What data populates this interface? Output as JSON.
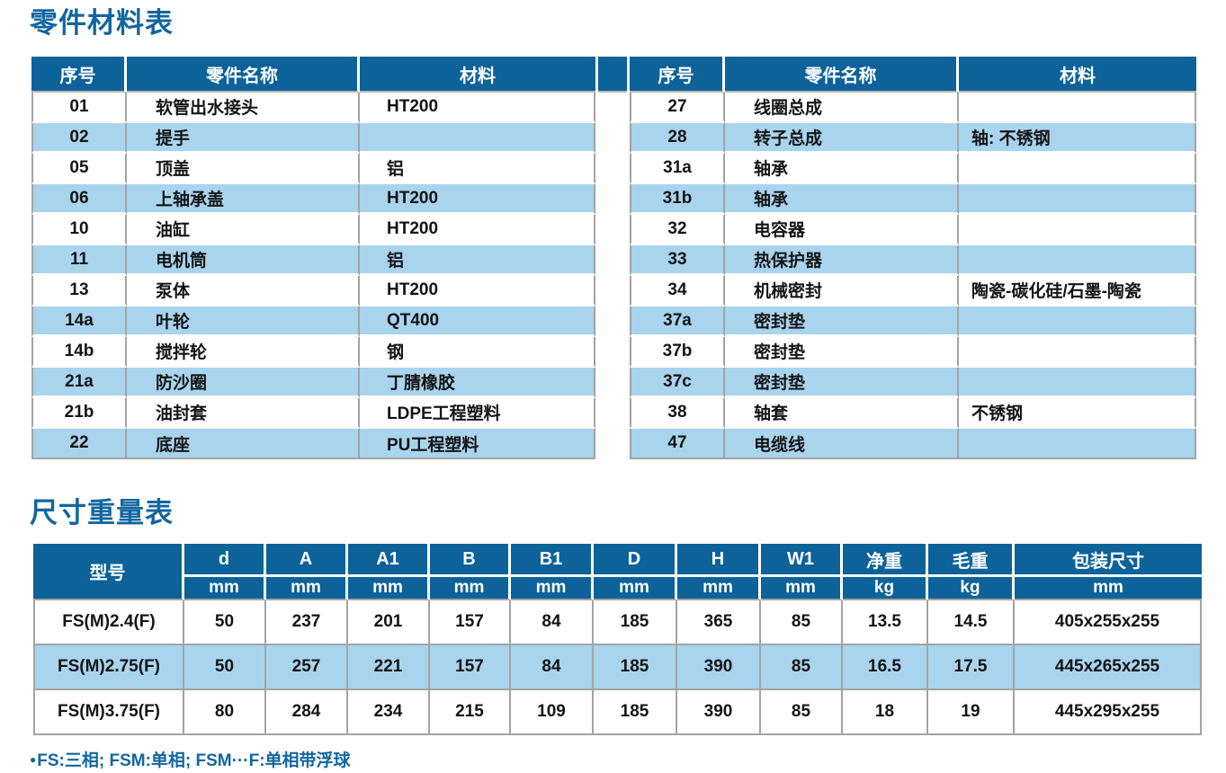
{
  "colors": {
    "header_blue": "#0d629a",
    "light_blue_row": "#a9d4ee",
    "title_blue": "#12669e",
    "border_gray": "#a3a3a3"
  },
  "parts_section": {
    "title": "零件材料表",
    "columns": [
      "序号",
      "零件名称",
      "材料"
    ],
    "left_rows": [
      {
        "no": "01",
        "name": "软管出水接头",
        "material": "HT200"
      },
      {
        "no": "02",
        "name": "提手",
        "material": ""
      },
      {
        "no": "05",
        "name": "顶盖",
        "material": "铝"
      },
      {
        "no": "06",
        "name": "上轴承盖",
        "material": "HT200"
      },
      {
        "no": "10",
        "name": "油缸",
        "material": "HT200"
      },
      {
        "no": "11",
        "name": "电机筒",
        "material": "铝"
      },
      {
        "no": "13",
        "name": "泵体",
        "material": "HT200"
      },
      {
        "no": "14a",
        "name": "叶轮",
        "material": "QT400"
      },
      {
        "no": "14b",
        "name": "搅拌轮",
        "material": "钢"
      },
      {
        "no": "21a",
        "name": "防沙圈",
        "material": "丁腈橡胶"
      },
      {
        "no": "21b",
        "name": "油封套",
        "material": "LDPE工程塑料"
      },
      {
        "no": "22",
        "name": "底座",
        "material": "PU工程塑料"
      }
    ],
    "right_rows": [
      {
        "no": "27",
        "name": "线圈总成",
        "material": ""
      },
      {
        "no": "28",
        "name": "转子总成",
        "material": "轴: 不锈钢"
      },
      {
        "no": "31a",
        "name": "轴承",
        "material": ""
      },
      {
        "no": "31b",
        "name": "轴承",
        "material": ""
      },
      {
        "no": "32",
        "name": "电容器",
        "material": ""
      },
      {
        "no": "33",
        "name": "热保护器",
        "material": ""
      },
      {
        "no": "34",
        "name": "机械密封",
        "material": "陶瓷-碳化硅/石墨-陶瓷"
      },
      {
        "no": "37a",
        "name": "密封垫",
        "material": ""
      },
      {
        "no": "37b",
        "name": "密封垫",
        "material": ""
      },
      {
        "no": "37c",
        "name": "密封垫",
        "material": ""
      },
      {
        "no": "38",
        "name": "轴套",
        "material": "不锈钢"
      },
      {
        "no": "47",
        "name": "电缆线",
        "material": ""
      }
    ]
  },
  "dimensions_section": {
    "title": "尺寸重量表",
    "model_header": "型号",
    "columns": [
      {
        "label": "d",
        "unit": "mm"
      },
      {
        "label": "A",
        "unit": "mm"
      },
      {
        "label": "A1",
        "unit": "mm"
      },
      {
        "label": "B",
        "unit": "mm"
      },
      {
        "label": "B1",
        "unit": "mm"
      },
      {
        "label": "D",
        "unit": "mm"
      },
      {
        "label": "H",
        "unit": "mm"
      },
      {
        "label": "W1",
        "unit": "mm"
      },
      {
        "label": "净重",
        "unit": "kg"
      },
      {
        "label": "毛重",
        "unit": "kg"
      },
      {
        "label": "包装尺寸",
        "unit": "mm"
      }
    ],
    "rows": [
      {
        "model": "FS(M)2.4(F)",
        "values": [
          "50",
          "237",
          "201",
          "157",
          "84",
          "185",
          "365",
          "85",
          "13.5",
          "14.5",
          "405x255x255"
        ]
      },
      {
        "model": "FS(M)2.75(F)",
        "values": [
          "50",
          "257",
          "221",
          "157",
          "84",
          "185",
          "390",
          "85",
          "16.5",
          "17.5",
          "445x265x255"
        ]
      },
      {
        "model": "FS(M)3.75(F)",
        "values": [
          "80",
          "284",
          "234",
          "215",
          "109",
          "185",
          "390",
          "85",
          "18",
          "19",
          "445x295x255"
        ]
      }
    ]
  },
  "footnote_bullet": "●",
  "footnote": "FS:三相; FSM:单相; FSM···F:单相带浮球"
}
